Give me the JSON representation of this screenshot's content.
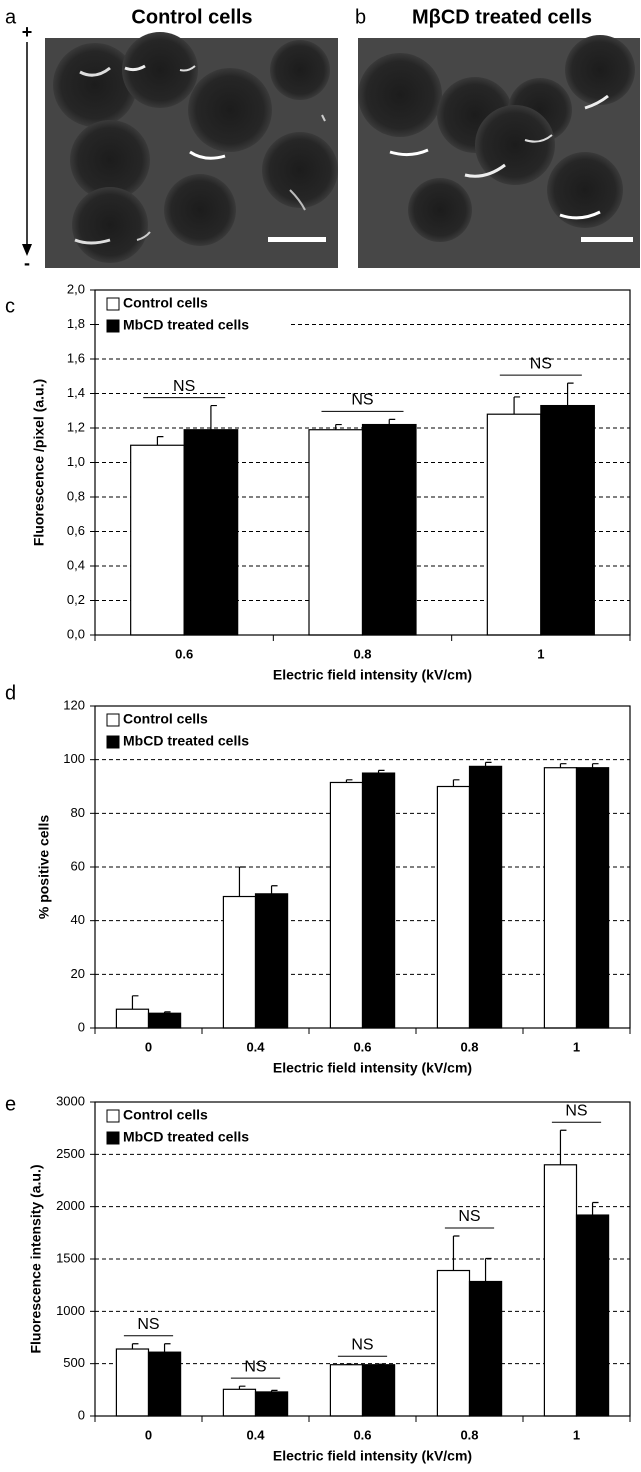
{
  "images": [
    {
      "label": "a",
      "title": "Control cells"
    },
    {
      "label": "b",
      "title": "MβCD treated cells"
    }
  ],
  "arrow": {
    "top": "+",
    "bottom": "-"
  },
  "chart_data": [
    {
      "type": "bar",
      "label": "c",
      "xlabel": "Electric field intensity (kV/cm)",
      "ylabel": "Fluorescence /pixel (a.u.)",
      "categories": [
        "0.6",
        "0.8",
        "1"
      ],
      "series": [
        {
          "name": "Control cells",
          "color": "#ffffff",
          "values": [
            1.1,
            1.19,
            1.28
          ],
          "errors": [
            0.05,
            0.03,
            0.1
          ]
        },
        {
          "name": "MbCD treated cells",
          "color": "#000000",
          "values": [
            1.19,
            1.22,
            1.33
          ],
          "errors": [
            0.14,
            0.03,
            0.13
          ]
        }
      ],
      "category_annotations": [
        "NS",
        "NS",
        "NS"
      ],
      "ylim": [
        0,
        2
      ],
      "yticks": [
        {
          "value": 0,
          "label": "0,0"
        },
        {
          "value": 0.2,
          "label": "0,2"
        },
        {
          "value": 0.4,
          "label": "0,4"
        },
        {
          "value": 0.6,
          "label": "0,6"
        },
        {
          "value": 0.8,
          "label": "0,8"
        },
        {
          "value": 1,
          "label": "1,0"
        },
        {
          "value": 1.2,
          "label": "1,2"
        },
        {
          "value": 1.4,
          "label": "1,4"
        },
        {
          "value": 1.6,
          "label": "1,6"
        },
        {
          "value": 1.8,
          "label": "1,8"
        },
        {
          "value": 2,
          "label": "2,0"
        }
      ],
      "grid": true
    },
    {
      "type": "bar",
      "label": "d",
      "xlabel": "Electric field intensity (kV/cm)",
      "ylabel": "% positive cells",
      "categories": [
        "0",
        "0.4",
        "0.6",
        "0.8",
        "1"
      ],
      "series": [
        {
          "name": "Control cells",
          "color": "#ffffff",
          "values": [
            7,
            49,
            91.5,
            90,
            97
          ],
          "errors": [
            5,
            11,
            1,
            2.5,
            1.5
          ]
        },
        {
          "name": "MbCD treated cells",
          "color": "#000000",
          "values": [
            5.5,
            50,
            95,
            97.5,
            97
          ],
          "errors": [
            0.5,
            3,
            1,
            1.5,
            1.5
          ]
        }
      ],
      "ylim": [
        0,
        120
      ],
      "yticks": [
        0,
        20,
        40,
        60,
        80,
        100,
        120
      ],
      "grid": true
    },
    {
      "type": "bar",
      "label": "e",
      "xlabel": "Electric field intensity (kV/cm)",
      "ylabel": "Fluorescence intensity (a.u.)",
      "categories": [
        "0",
        "0.4",
        "0.6",
        "0.8",
        "1"
      ],
      "series": [
        {
          "name": "Control cells",
          "color": "#ffffff",
          "values": [
            640,
            255,
            490,
            1390,
            2400
          ],
          "errors": [
            50,
            30,
            5,
            330,
            330
          ]
        },
        {
          "name": "MbCD treated cells",
          "color": "#000000",
          "values": [
            610,
            230,
            490,
            1285,
            1920
          ],
          "errors": [
            80,
            15,
            5,
            220,
            120
          ]
        }
      ],
      "category_annotations": [
        "NS",
        "NS",
        "NS",
        "NS",
        "NS"
      ],
      "ylim": [
        0,
        3000
      ],
      "yticks": [
        0,
        500,
        1000,
        1500,
        2000,
        2500,
        3000
      ],
      "grid": true
    }
  ]
}
